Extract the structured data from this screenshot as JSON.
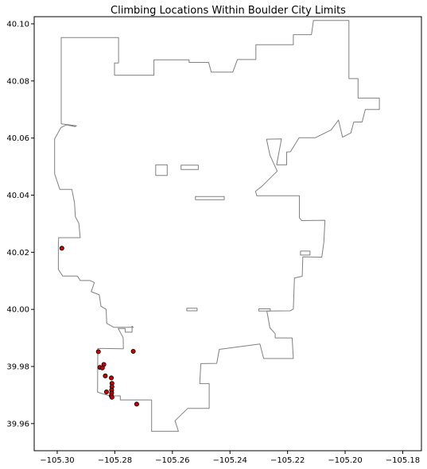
{
  "chart_data": {
    "type": "scatter",
    "title": "Climbing Locations Within Boulder City Limits",
    "xlabel": "",
    "ylabel": "",
    "xlim": [
      -105.308,
      -105.1735
    ],
    "ylim": [
      39.9505,
      40.1025
    ],
    "x_ticks": [
      -105.3,
      -105.28,
      -105.26,
      -105.24,
      -105.22,
      -105.2,
      -105.18
    ],
    "x_tick_labels": [
      "−105.30",
      "−105.28",
      "−105.26",
      "−105.24",
      "−105.22",
      "−105.20",
      "−105.18"
    ],
    "y_ticks": [
      39.96,
      39.98,
      40.0,
      40.02,
      40.04,
      40.06,
      40.08,
      40.1
    ],
    "y_tick_labels": [
      "39.96",
      "39.98",
      "40.00",
      "40.02",
      "40.04",
      "40.06",
      "40.08",
      "40.10"
    ],
    "grid": false,
    "colors": {
      "boundary": "#808080",
      "point_fill": "#cc0000",
      "point_edge": "#000000"
    },
    "boundary": {
      "outer": [
        [
          -105.2986,
          40.0952
        ],
        [
          -105.2787,
          40.0952
        ],
        [
          -105.2787,
          40.0863
        ],
        [
          -105.2801,
          40.0863
        ],
        [
          -105.2801,
          40.082
        ],
        [
          -105.2664,
          40.082
        ],
        [
          -105.2664,
          40.0874
        ],
        [
          -105.2542,
          40.0874
        ],
        [
          -105.2542,
          40.0865
        ],
        [
          -105.2474,
          40.0865
        ],
        [
          -105.2465,
          40.0831
        ],
        [
          -105.239,
          40.0831
        ],
        [
          -105.2374,
          40.0875
        ],
        [
          -105.231,
          40.0875
        ],
        [
          -105.231,
          40.0927
        ],
        [
          -105.218,
          40.0927
        ],
        [
          -105.218,
          40.0962
        ],
        [
          -105.2117,
          40.0962
        ],
        [
          -105.211,
          40.1012
        ],
        [
          -105.1987,
          40.1012
        ],
        [
          -105.1987,
          40.0808
        ],
        [
          -105.1955,
          40.0808
        ],
        [
          -105.1955,
          40.074
        ],
        [
          -105.1881,
          40.074
        ],
        [
          -105.1881,
          40.07
        ],
        [
          -105.193,
          40.07
        ],
        [
          -105.1941,
          40.0656
        ],
        [
          -105.197,
          40.0656
        ],
        [
          -105.198,
          40.0618
        ],
        [
          -105.2009,
          40.0603
        ],
        [
          -105.2023,
          40.0663
        ],
        [
          -105.2049,
          40.0628
        ],
        [
          -105.2104,
          40.0601
        ],
        [
          -105.216,
          40.0601
        ],
        [
          -105.219,
          40.0552
        ],
        [
          -105.2203,
          40.0551
        ],
        [
          -105.2203,
          40.0506
        ],
        [
          -105.2238,
          40.0506
        ],
        [
          -105.2221,
          40.0597
        ],
        [
          -105.2273,
          40.0596
        ],
        [
          -105.2261,
          40.054
        ],
        [
          -105.2236,
          40.0484
        ],
        [
          -105.229,
          40.043
        ],
        [
          -105.2311,
          40.0414
        ],
        [
          -105.2307,
          40.0398
        ],
        [
          -105.2159,
          40.0398
        ],
        [
          -105.2159,
          40.0321
        ],
        [
          -105.2151,
          40.0311
        ],
        [
          -105.207,
          40.0312
        ],
        [
          -105.2074,
          40.0235
        ],
        [
          -105.2081,
          40.0183
        ],
        [
          -105.2147,
          40.0184
        ],
        [
          -105.2149,
          40.0116
        ],
        [
          -105.2176,
          40.011
        ],
        [
          -105.218,
          40.0001
        ],
        [
          -105.2191,
          39.9995
        ],
        [
          -105.2272,
          39.9994
        ],
        [
          -105.2261,
          39.9935
        ],
        [
          -105.2243,
          39.9915
        ],
        [
          -105.2243,
          39.99
        ],
        [
          -105.2184,
          39.99
        ],
        [
          -105.218,
          39.9828
        ],
        [
          -105.2283,
          39.9828
        ],
        [
          -105.2296,
          39.9879
        ],
        [
          -105.2437,
          39.986
        ],
        [
          -105.2446,
          39.9811
        ],
        [
          -105.2501,
          39.981
        ],
        [
          -105.2505,
          39.974
        ],
        [
          -105.2472,
          39.974
        ],
        [
          -105.2472,
          39.9653
        ],
        [
          -105.2547,
          39.9653
        ],
        [
          -105.2591,
          39.961
        ],
        [
          -105.2579,
          39.9573
        ],
        [
          -105.2672,
          39.9573
        ],
        [
          -105.2672,
          39.9683
        ],
        [
          -105.2781,
          39.9683
        ],
        [
          -105.2781,
          39.9697
        ],
        [
          -105.2818,
          39.9697
        ],
        [
          -105.286,
          39.971
        ],
        [
          -105.2859,
          39.9863
        ],
        [
          -105.2839,
          39.9863
        ],
        [
          -105.277,
          39.9862
        ],
        [
          -105.2771,
          39.9901
        ],
        [
          -105.2788,
          39.9933
        ],
        [
          -105.2764,
          39.9933
        ],
        [
          -105.2764,
          39.992
        ],
        [
          -105.274,
          39.992
        ],
        [
          -105.274,
          39.9941
        ],
        [
          -105.2736,
          39.9937
        ],
        [
          -105.2803,
          39.9937
        ],
        [
          -105.2828,
          39.9951
        ],
        [
          -105.283,
          40.0
        ],
        [
          -105.2848,
          40.0011
        ],
        [
          -105.2854,
          40.0051
        ],
        [
          -105.2882,
          40.0062
        ],
        [
          -105.2871,
          40.0094
        ],
        [
          -105.2886,
          40.0101
        ],
        [
          -105.292,
          40.0101
        ],
        [
          -105.293,
          40.0117
        ],
        [
          -105.2981,
          40.0117
        ],
        [
          -105.2996,
          40.014
        ],
        [
          -105.2996,
          40.0229
        ],
        [
          -105.2995,
          40.0251
        ],
        [
          -105.292,
          40.0251
        ],
        [
          -105.2925,
          40.0302
        ],
        [
          -105.2937,
          40.0324
        ],
        [
          -105.294,
          40.0373
        ],
        [
          -105.2949,
          40.042
        ],
        [
          -105.2991,
          40.042
        ],
        [
          -105.3009,
          40.0475
        ],
        [
          -105.3009,
          40.0597
        ],
        [
          -105.2987,
          40.0637
        ],
        [
          -105.2968,
          40.0646
        ],
        [
          -105.2938,
          40.064
        ],
        [
          -105.2933,
          40.0643
        ],
        [
          -105.2986,
          40.065
        ],
        [
          -105.2986,
          40.0952
        ]
      ],
      "islands": [
        [
          [
            -105.257,
            40.0505
          ],
          [
            -105.251,
            40.0505
          ],
          [
            -105.251,
            40.049
          ],
          [
            -105.257,
            40.049
          ],
          [
            -105.257,
            40.0505
          ]
        ],
        [
          [
            -105.252,
            40.0395
          ],
          [
            -105.242,
            40.0395
          ],
          [
            -105.242,
            40.0384
          ],
          [
            -105.252,
            40.0384
          ],
          [
            -105.252,
            40.0395
          ]
        ],
        [
          [
            -105.2658,
            40.0506
          ],
          [
            -105.2618,
            40.0506
          ],
          [
            -105.2618,
            40.0469
          ],
          [
            -105.2658,
            40.0469
          ],
          [
            -105.2658,
            40.0506
          ]
        ],
        [
          [
            -105.23,
            40.0002
          ],
          [
            -105.226,
            40.0002
          ],
          [
            -105.226,
            39.9994
          ],
          [
            -105.23,
            39.9994
          ],
          [
            -105.23,
            40.0002
          ]
        ],
        [
          [
            -105.255,
            40.0004
          ],
          [
            -105.2514,
            40.0004
          ],
          [
            -105.2514,
            39.9995
          ],
          [
            -105.255,
            39.9995
          ],
          [
            -105.255,
            40.0004
          ]
        ],
        [
          [
            -105.2155,
            40.0204
          ],
          [
            -105.2122,
            40.0204
          ],
          [
            -105.2122,
            40.019
          ],
          [
            -105.2155,
            40.019
          ],
          [
            -105.2155,
            40.0204
          ]
        ]
      ]
    },
    "points": [
      [
        -105.2984,
        40.0214
      ],
      [
        -105.2857,
        39.9852
      ],
      [
        -105.2736,
        39.9853
      ],
      [
        -105.2838,
        39.9807
      ],
      [
        -105.2852,
        39.9797
      ],
      [
        -105.2843,
        39.9795
      ],
      [
        -105.2833,
        39.9767
      ],
      [
        -105.2812,
        39.976
      ],
      [
        -105.281,
        39.9741
      ],
      [
        -105.281,
        39.9729
      ],
      [
        -105.2811,
        39.9717
      ],
      [
        -105.2811,
        39.9707
      ],
      [
        -105.2812,
        39.9698
      ],
      [
        -105.281,
        39.9692
      ],
      [
        -105.2829,
        39.9711
      ],
      [
        -105.2724,
        39.9668
      ]
    ]
  }
}
